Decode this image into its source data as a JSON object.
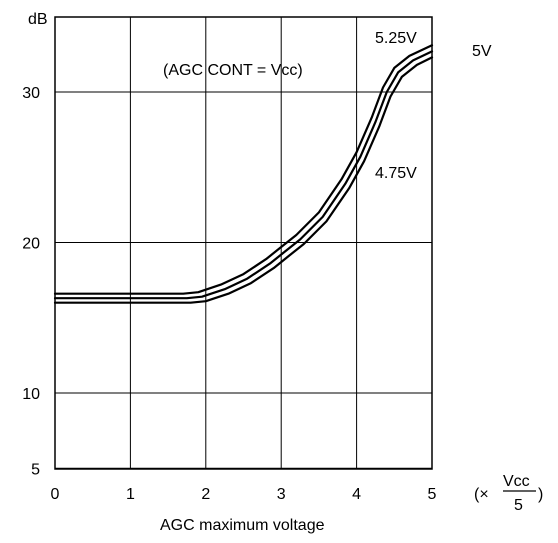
{
  "chart_data": {
    "type": "line",
    "xlabel": "AGC maximum voltage",
    "x_unit": {
      "prefix": "(×",
      "fraction_top": "Vcc",
      "fraction_bottom": "5",
      "suffix": ")"
    },
    "ylabel": "dB",
    "annotation": "(AGC CONT = Vcc)",
    "xlim": [
      0,
      5
    ],
    "ylim": [
      5,
      35
    ],
    "x_ticks": [
      "0",
      "1",
      "2",
      "3",
      "4",
      "5"
    ],
    "y_ticks": [
      {
        "value": 5,
        "label": "5"
      },
      {
        "value": 10,
        "label": "10"
      },
      {
        "value": 20,
        "label": "20"
      },
      {
        "value": 30,
        "label": "30"
      }
    ],
    "grid": true,
    "series": [
      {
        "name": "5.25V",
        "x": [
          0,
          1.7,
          1.9,
          2.2,
          2.5,
          2.8,
          3.0,
          3.2,
          3.5,
          3.8,
          4.0,
          4.2,
          4.35,
          4.5,
          4.7,
          5.0
        ],
        "y": [
          16.6,
          16.6,
          16.7,
          17.2,
          17.9,
          18.9,
          19.7,
          20.5,
          22.0,
          24.2,
          26.0,
          28.3,
          30.3,
          31.6,
          32.4,
          33.1
        ]
      },
      {
        "name": "5V",
        "x": [
          0,
          1.75,
          1.95,
          2.25,
          2.55,
          2.85,
          3.05,
          3.25,
          3.55,
          3.85,
          4.05,
          4.25,
          4.4,
          4.55,
          4.75,
          5.0
        ],
        "y": [
          16.3,
          16.3,
          16.4,
          16.9,
          17.6,
          18.6,
          19.4,
          20.2,
          21.7,
          23.9,
          25.7,
          28.0,
          30.0,
          31.3,
          32.1,
          32.7
        ]
      },
      {
        "name": "4.75V",
        "x": [
          0,
          1.8,
          2.0,
          2.3,
          2.6,
          2.9,
          3.1,
          3.3,
          3.6,
          3.9,
          4.1,
          4.3,
          4.45,
          4.6,
          4.8,
          5.0
        ],
        "y": [
          16.0,
          16.0,
          16.1,
          16.6,
          17.3,
          18.3,
          19.1,
          19.9,
          21.4,
          23.6,
          25.4,
          27.7,
          29.7,
          31.0,
          31.8,
          32.3
        ]
      }
    ]
  }
}
